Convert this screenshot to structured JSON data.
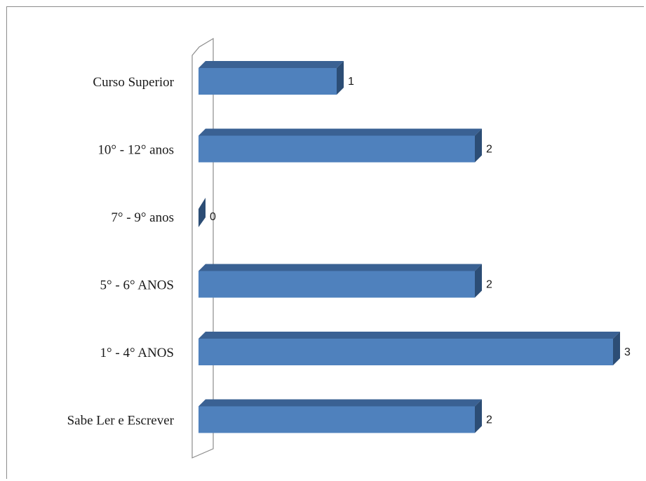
{
  "chart_data": {
    "type": "bar",
    "orientation": "horizontal",
    "style": "3d",
    "categories": [
      "Curso Superior",
      "10° - 12° anos",
      "7° - 9° anos",
      "5° - 6° ANOS",
      "1° - 4° ANOS",
      "Sabe Ler e Escrever"
    ],
    "values": [
      1,
      2,
      0,
      2,
      3,
      2
    ],
    "data_labels": [
      "1",
      "2",
      "0",
      "2",
      "3",
      "2"
    ],
    "xlim": [
      0,
      3
    ],
    "grid": false,
    "legend": "none",
    "colors": {
      "bar_front": "#4f81bd",
      "bar_top": "#3a6193",
      "bar_side": "#2c4d75",
      "axis_wall": "#8c8c8c"
    }
  }
}
